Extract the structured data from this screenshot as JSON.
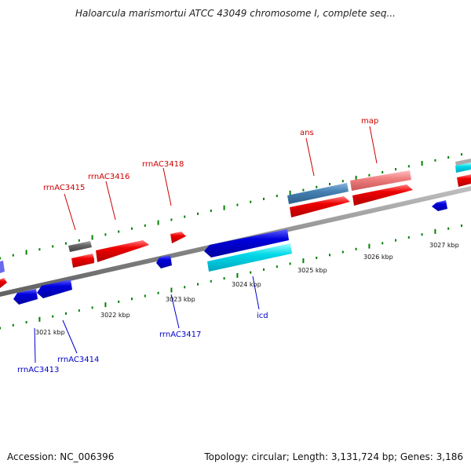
{
  "title": "Haloarcula marismortui ATCC 43049 chromosome I, complete seq...",
  "footer": {
    "accession": "Accession: NC_006396",
    "topology": "Topology: circular; Length: 3,131,724 bp; Genes: 3,186"
  },
  "scale_labels": [
    "3021 kbp",
    "3022 kbp",
    "3023 kbp",
    "3024 kbp",
    "3025 kbp",
    "3026 kbp",
    "3027 kbp"
  ],
  "gene_labels": {
    "forward": [
      "rrnAC3415",
      "rrnAC3416",
      "rrnAC3418",
      "ans",
      "map"
    ],
    "reverse": [
      "rrnAC3413",
      "rrnAC3414",
      "rrnAC3417",
      "icd"
    ]
  },
  "colors": {
    "forward_cds": "#ee0000",
    "reverse_cds": "#0000dd",
    "reverse_highlight": "#00d8e8",
    "forward_steel": "#4682b4",
    "forward_pink": "#f08080",
    "gray_feature": "#666666",
    "tick": "#008000",
    "backbone": "#888888",
    "forward_label": "#cc0000",
    "reverse_label": "#0000cc"
  }
}
